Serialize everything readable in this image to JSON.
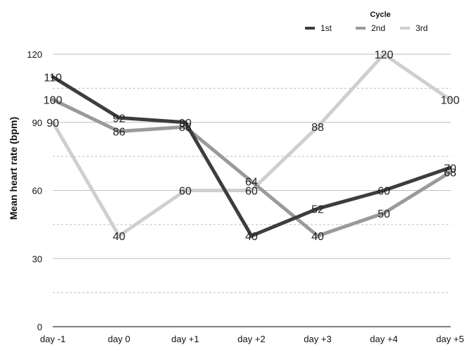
{
  "chart_data": {
    "type": "line",
    "title": "",
    "xlabel": "",
    "ylabel": "Mean heart rate (bpm)",
    "categories": [
      "day -1",
      "day 0",
      "day +1",
      "day +2",
      "day +3",
      "day +4",
      "day +5"
    ],
    "ylim": [
      0,
      120
    ],
    "yticks": [
      "0",
      "30",
      "60",
      "90",
      "120"
    ],
    "grid": true,
    "legend_title": "Cycle",
    "legend_position": "top-right",
    "series": [
      {
        "name": "1st",
        "color": "#3d3d3d",
        "values": [
          110,
          92,
          90,
          40,
          52,
          60,
          70
        ],
        "labels": [
          "110",
          "92",
          "90",
          "40",
          "52",
          "60",
          "70"
        ]
      },
      {
        "name": "2nd",
        "color": "#9a9a9a",
        "values": [
          100,
          86,
          88,
          64,
          40,
          50,
          68
        ],
        "labels": [
          "100",
          "86",
          "88",
          "64",
          "40",
          "50",
          "68"
        ]
      },
      {
        "name": "3rd",
        "color": "#cfcfcf",
        "values": [
          90,
          40,
          60,
          60,
          88,
          120,
          100
        ],
        "labels": [
          "90",
          "40",
          "60",
          "60",
          "88",
          "120",
          "100"
        ]
      }
    ]
  }
}
